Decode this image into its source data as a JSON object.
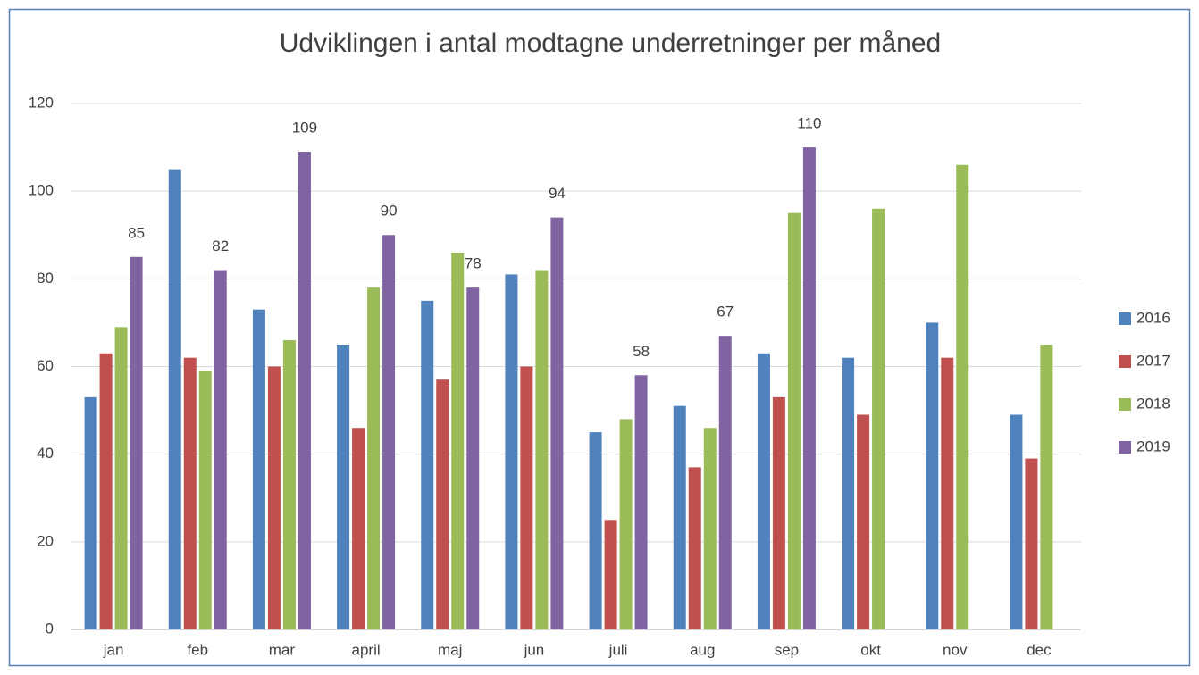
{
  "chart_data": {
    "type": "bar",
    "title": "Udviklingen i antal modtagne underretninger per måned",
    "categories": [
      "jan",
      "feb",
      "mar",
      "april",
      "maj",
      "jun",
      "juli",
      "aug",
      "sep",
      "okt",
      "nov",
      "dec"
    ],
    "series": [
      {
        "name": "2016",
        "color": "#4f81bd",
        "values": [
          53,
          105,
          73,
          65,
          75,
          81,
          45,
          51,
          63,
          62,
          70,
          49
        ]
      },
      {
        "name": "2017",
        "color": "#c0504d",
        "values": [
          63,
          62,
          60,
          46,
          57,
          60,
          25,
          37,
          53,
          49,
          62,
          39
        ]
      },
      {
        "name": "2018",
        "color": "#9bbb59",
        "values": [
          69,
          59,
          66,
          78,
          86,
          82,
          48,
          46,
          95,
          96,
          106,
          65
        ]
      },
      {
        "name": "2019",
        "color": "#8064a2",
        "values": [
          85,
          82,
          109,
          90,
          78,
          94,
          58,
          67,
          110,
          null,
          null,
          null
        ],
        "data_labels": true
      }
    ],
    "ylim": [
      0,
      120
    ],
    "yticks": [
      0,
      20,
      40,
      60,
      80,
      100,
      120
    ],
    "grid": true,
    "legend": "right"
  }
}
